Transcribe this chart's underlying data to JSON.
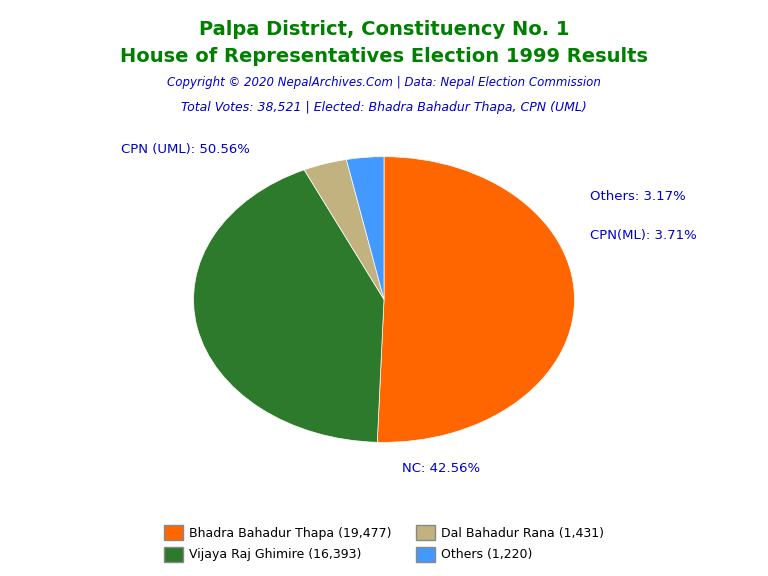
{
  "title_line1": "Palpa District, Constituency No. 1",
  "title_line2": "House of Representatives Election 1999 Results",
  "title_color": "#008000",
  "copyright_text": "Copyright © 2020 NepalArchives.Com | Data: Nepal Election Commission",
  "copyright_color": "#0000CD",
  "total_votes_text": "Total Votes: 38,521 | Elected: Bhadra Bahadur Thapa, CPN (UML)",
  "total_votes_color": "#0000CD",
  "slices": [
    19477,
    16393,
    1431,
    1220
  ],
  "slice_labels": [
    "CPN (UML): 50.56%",
    "NC: 42.56%",
    "CPN(ML): 3.71%",
    "Others: 3.17%"
  ],
  "slice_colors": [
    "#FF6600",
    "#2D7A2D",
    "#C2B280",
    "#4499FF"
  ],
  "label_color": "#0000CD",
  "legend_labels": [
    "Bhadra Bahadur Thapa (19,477)",
    "Vijaya Raj Ghimire (16,393)",
    "Dal Bahadur Rana (1,431)",
    "Others (1,220)"
  ],
  "legend_colors": [
    "#FF6600",
    "#2D7A2D",
    "#C2B280",
    "#4499FF"
  ],
  "startangle": 90,
  "background_color": "#FFFFFF"
}
